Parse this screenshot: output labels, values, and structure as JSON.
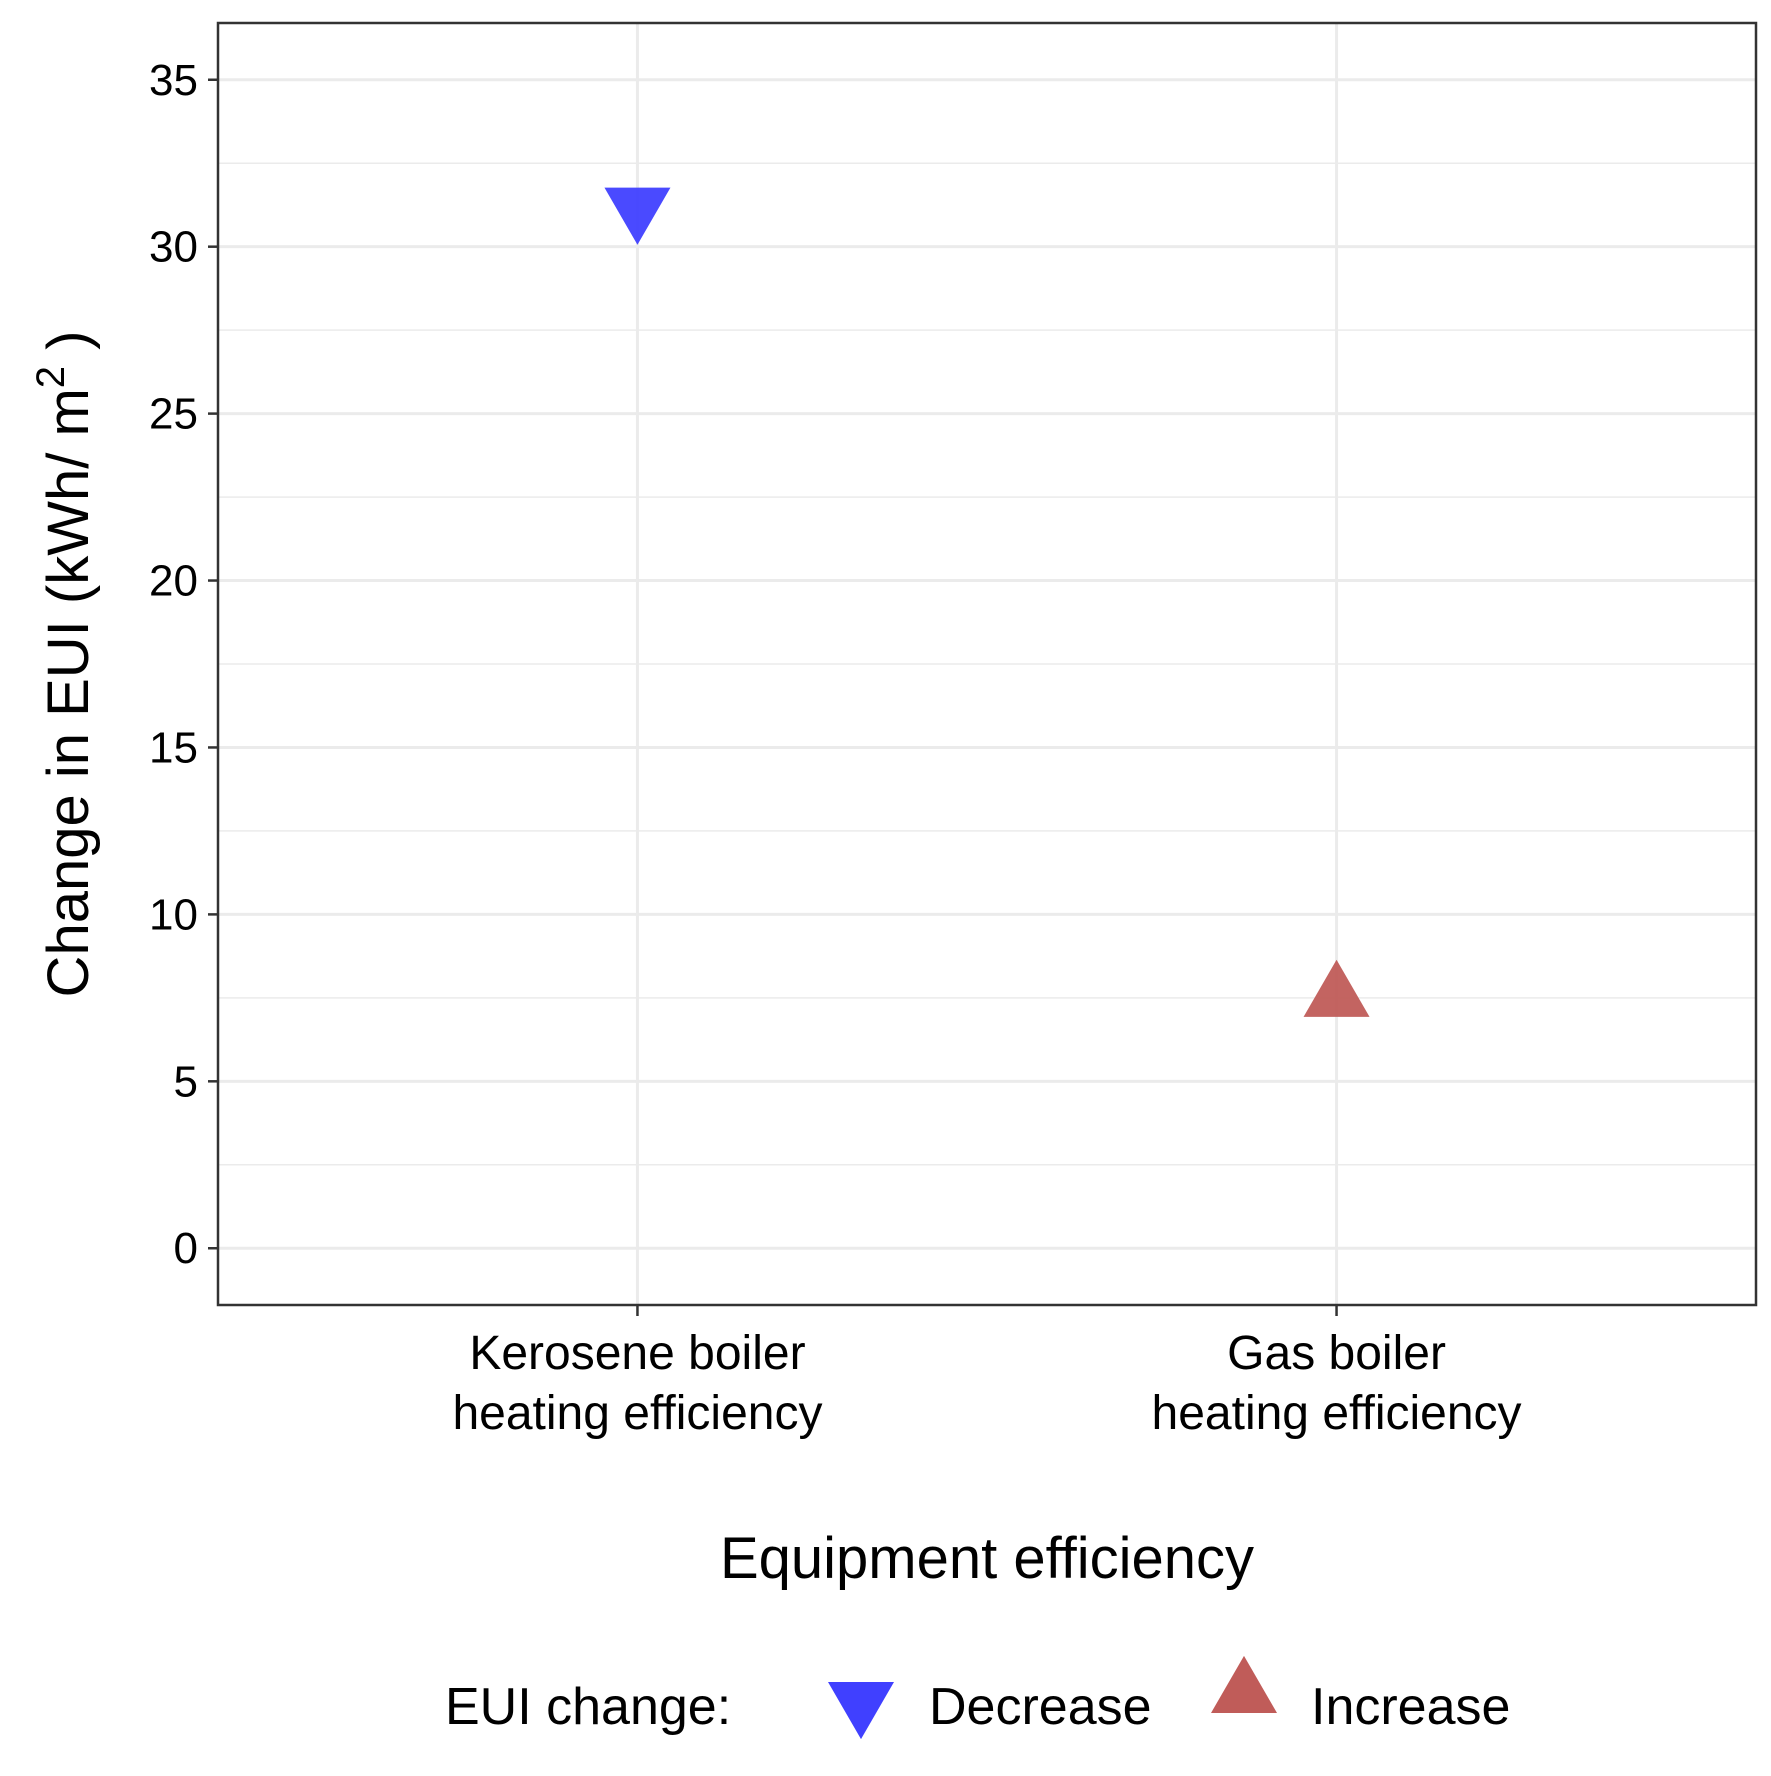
{
  "chart_data": {
    "type": "scatter",
    "title": "",
    "xlabel": "Equipment efficiency",
    "ylabel": "Change in EUI (kWh/ m",
    "ylabel_superscript": "2",
    "ylabel_suffix": " )",
    "categories": [
      [
        "Kerosene boiler",
        "heating efficiency"
      ],
      [
        "Gas boiler",
        "heating efficiency"
      ]
    ],
    "ylim": [
      -1.7,
      36.7
    ],
    "yticks": [
      0,
      5,
      10,
      15,
      20,
      25,
      30,
      35
    ],
    "grid": true,
    "points": [
      {
        "category_index": 0,
        "y": 31.2,
        "series": "Decrease"
      },
      {
        "category_index": 1,
        "y": 7.5,
        "series": "Increase"
      }
    ],
    "series": [
      {
        "name": "Decrease",
        "shape": "triangle-down",
        "color": "#4040ff"
      },
      {
        "name": "Increase",
        "shape": "triangle-up",
        "color": "#c05c59"
      }
    ],
    "legend": {
      "title": "EUI change:",
      "position": "bottom",
      "items": [
        "Decrease",
        "Increase"
      ]
    }
  }
}
